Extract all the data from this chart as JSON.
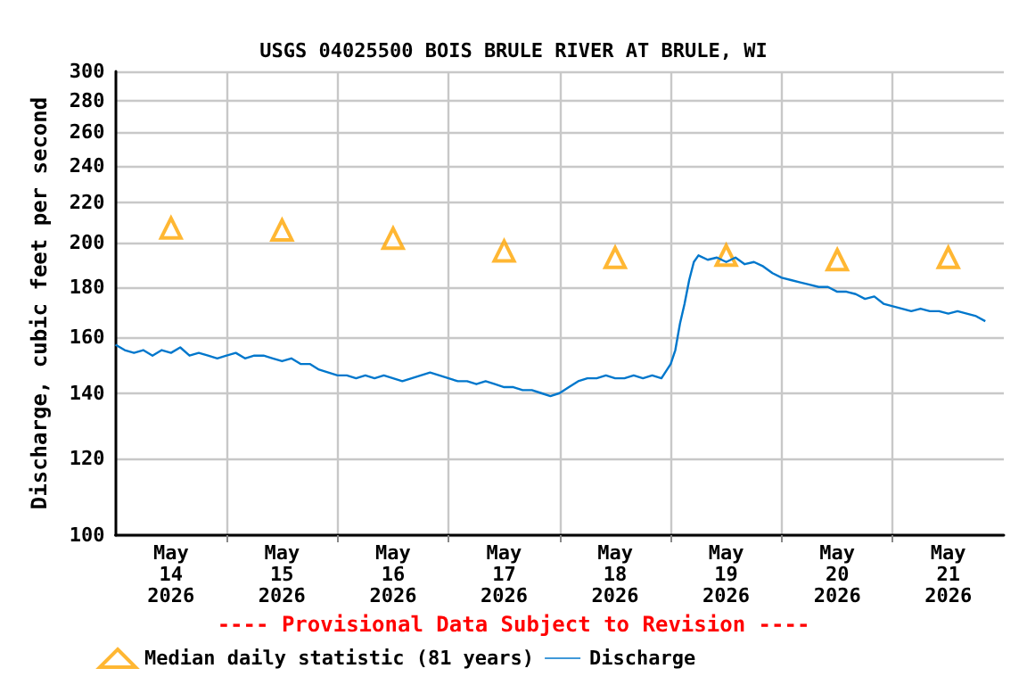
{
  "chart_data": {
    "type": "line",
    "title": "USGS 04025500 BOIS BRULE RIVER AT BRULE, WI",
    "ylabel": "Discharge, cubic feet per second",
    "log": "y",
    "grid": true,
    "legend": "bottom",
    "annotations": [
      "---- Provisional Data Subject to Revision ----"
    ],
    "xlim": [
      "2026-05-14T00:00",
      "2026-05-22T00:00"
    ],
    "xticks": [
      {
        "value": "2026-05-14T12:00",
        "label": "May\n14\n2026"
      },
      {
        "value": "2026-05-15T00:00",
        "label": null
      },
      {
        "value": "2026-05-15T12:00",
        "label": "May\n15\n2026"
      },
      {
        "value": "2026-05-16T00:00",
        "label": null
      },
      {
        "value": "2026-05-16T12:00",
        "label": "May\n16\n2026"
      },
      {
        "value": "2026-05-17T00:00",
        "label": null
      },
      {
        "value": "2026-05-17T12:00",
        "label": "May\n17\n2026"
      },
      {
        "value": "2026-05-18T00:00",
        "label": null
      },
      {
        "value": "2026-05-18T12:00",
        "label": "May\n18\n2026"
      },
      {
        "value": "2026-05-19T00:00",
        "label": null
      },
      {
        "value": "2026-05-19T12:00",
        "label": "May\n19\n2026"
      },
      {
        "value": "2026-05-20T00:00",
        "label": null
      },
      {
        "value": "2026-05-20T12:00",
        "label": "May\n20\n2026"
      },
      {
        "value": "2026-05-21T00:00",
        "label": null
      },
      {
        "value": "2026-05-21T12:00",
        "label": "May\n21\n2026"
      }
    ],
    "ylim": [
      100,
      300
    ],
    "yticks": [
      100,
      120,
      140,
      160,
      180,
      200,
      220,
      240,
      260,
      280,
      300
    ],
    "series": [
      {
        "name": "Median daily statistic (81 years)",
        "type": "scatter",
        "marker": "triangle",
        "color": "#ffa500",
        "x": [
          "2026-05-14T12:00",
          "2026-05-15T12:00",
          "2026-05-16T12:00",
          "2026-05-17T12:00",
          "2026-05-18T12:00",
          "2026-05-19T12:00",
          "2026-05-20T12:00",
          "2026-05-21T12:00"
        ],
        "values": [
          207,
          206,
          202,
          196,
          193,
          194,
          192,
          193
        ]
      },
      {
        "name": "Discharge",
        "marker": "none",
        "color": "#0077cc",
        "x": [
          "2026-05-14T00:00",
          "2026-05-14T02:00",
          "2026-05-14T04:00",
          "2026-05-14T06:00",
          "2026-05-14T08:00",
          "2026-05-14T10:00",
          "2026-05-14T12:00",
          "2026-05-14T14:00",
          "2026-05-14T16:00",
          "2026-05-14T18:00",
          "2026-05-14T20:00",
          "2026-05-14T22:00",
          "2026-05-15T00:00",
          "2026-05-15T02:00",
          "2026-05-15T04:00",
          "2026-05-15T06:00",
          "2026-05-15T08:00",
          "2026-05-15T10:00",
          "2026-05-15T12:00",
          "2026-05-15T14:00",
          "2026-05-15T16:00",
          "2026-05-15T18:00",
          "2026-05-15T20:00",
          "2026-05-15T22:00",
          "2026-05-16T00:00",
          "2026-05-16T02:00",
          "2026-05-16T04:00",
          "2026-05-16T06:00",
          "2026-05-16T08:00",
          "2026-05-16T10:00",
          "2026-05-16T12:00",
          "2026-05-16T14:00",
          "2026-05-16T16:00",
          "2026-05-16T18:00",
          "2026-05-16T20:00",
          "2026-05-16T22:00",
          "2026-05-17T00:00",
          "2026-05-17T02:00",
          "2026-05-17T04:00",
          "2026-05-17T06:00",
          "2026-05-17T08:00",
          "2026-05-17T10:00",
          "2026-05-17T12:00",
          "2026-05-17T14:00",
          "2026-05-17T16:00",
          "2026-05-17T18:00",
          "2026-05-17T20:00",
          "2026-05-17T22:00",
          "2026-05-18T00:00",
          "2026-05-18T02:00",
          "2026-05-18T04:00",
          "2026-05-18T06:00",
          "2026-05-18T08:00",
          "2026-05-18T10:00",
          "2026-05-18T12:00",
          "2026-05-18T14:00",
          "2026-05-18T16:00",
          "2026-05-18T18:00",
          "2026-05-18T20:00",
          "2026-05-18T22:00",
          "2026-05-19T00:00",
          "2026-05-19T01:00",
          "2026-05-19T02:00",
          "2026-05-19T03:00",
          "2026-05-19T04:00",
          "2026-05-19T05:00",
          "2026-05-19T06:00",
          "2026-05-19T08:00",
          "2026-05-19T10:00",
          "2026-05-19T12:00",
          "2026-05-19T14:00",
          "2026-05-19T16:00",
          "2026-05-19T18:00",
          "2026-05-19T20:00",
          "2026-05-19T22:00",
          "2026-05-20T00:00",
          "2026-05-20T02:00",
          "2026-05-20T04:00",
          "2026-05-20T06:00",
          "2026-05-20T08:00",
          "2026-05-20T10:00",
          "2026-05-20T12:00",
          "2026-05-20T14:00",
          "2026-05-20T16:00",
          "2026-05-20T18:00",
          "2026-05-20T20:00",
          "2026-05-20T22:00",
          "2026-05-21T00:00",
          "2026-05-21T02:00",
          "2026-05-21T04:00",
          "2026-05-21T06:00",
          "2026-05-21T08:00",
          "2026-05-21T10:00",
          "2026-05-21T12:00",
          "2026-05-21T14:00",
          "2026-05-21T16:00",
          "2026-05-21T18:00",
          "2026-05-21T20:00"
        ],
        "values": [
          157,
          155,
          154,
          155,
          153,
          155,
          154,
          156,
          153,
          154,
          153,
          152,
          153,
          154,
          152,
          153,
          153,
          152,
          151,
          152,
          150,
          150,
          148,
          147,
          146,
          146,
          145,
          146,
          145,
          146,
          145,
          144,
          145,
          146,
          147,
          146,
          145,
          144,
          144,
          143,
          144,
          143,
          142,
          142,
          141,
          141,
          140,
          139,
          140,
          142,
          144,
          145,
          145,
          146,
          145,
          145,
          146,
          145,
          146,
          145,
          150,
          155,
          165,
          173,
          183,
          191,
          194,
          192,
          193,
          191,
          193,
          190,
          191,
          189,
          186,
          184,
          183,
          182,
          181,
          180,
          180,
          178,
          178,
          177,
          175,
          176,
          173,
          172,
          171,
          170,
          171,
          170,
          170,
          169,
          170,
          169,
          168,
          166
        ]
      }
    ]
  }
}
